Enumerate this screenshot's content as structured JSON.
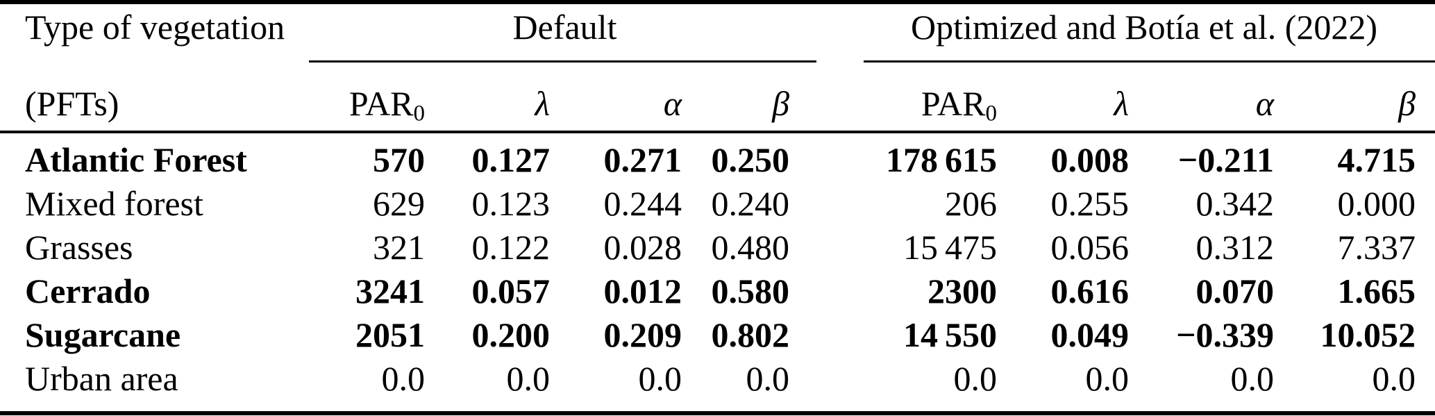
{
  "colors": {
    "text": "#000000",
    "background": "#ffffff",
    "rule": "#000000"
  },
  "header": {
    "col1_line1": "Type of vegetation",
    "col1_line2": "(PFTs)",
    "group_default": "Default",
    "group_optimized": "Optimized and Botía et al. (2022)",
    "sub": {
      "par_base": "PAR",
      "par_sub": "0",
      "lambda": "λ",
      "alpha": "α",
      "beta": "β"
    }
  },
  "rows": [
    {
      "pft": "Atlantic Forest",
      "bold": true,
      "default": {
        "par0": "570",
        "lambda": "0.127",
        "alpha": "0.271",
        "beta": "0.250"
      },
      "optimized": {
        "par0": "178 615",
        "lambda": "0.008",
        "alpha": "−0.211",
        "beta": "4.715"
      }
    },
    {
      "pft": "Mixed forest",
      "bold": false,
      "default": {
        "par0": "629",
        "lambda": "0.123",
        "alpha": "0.244",
        "beta": "0.240"
      },
      "optimized": {
        "par0": "206",
        "lambda": "0.255",
        "alpha": "0.342",
        "beta": "0.000"
      }
    },
    {
      "pft": "Grasses",
      "bold": false,
      "default": {
        "par0": "321",
        "lambda": "0.122",
        "alpha": "0.028",
        "beta": "0.480"
      },
      "optimized": {
        "par0": "15 475",
        "lambda": "0.056",
        "alpha": "0.312",
        "beta": "7.337"
      }
    },
    {
      "pft": "Cerrado",
      "bold": true,
      "default": {
        "par0": "3241",
        "lambda": "0.057",
        "alpha": "0.012",
        "beta": "0.580"
      },
      "optimized": {
        "par0": "2300",
        "lambda": "0.616",
        "alpha": "0.070",
        "beta": "1.665"
      }
    },
    {
      "pft": "Sugarcane",
      "bold": true,
      "default": {
        "par0": "2051",
        "lambda": "0.200",
        "alpha": "0.209",
        "beta": "0.802"
      },
      "optimized": {
        "par0": "14 550",
        "lambda": "0.049",
        "alpha": "−0.339",
        "beta": "10.052"
      }
    },
    {
      "pft": "Urban area",
      "bold": false,
      "default": {
        "par0": "0.0",
        "lambda": "0.0",
        "alpha": "0.0",
        "beta": "0.0"
      },
      "optimized": {
        "par0": "0.0",
        "lambda": "0.0",
        "alpha": "0.0",
        "beta": "0.0"
      }
    }
  ]
}
